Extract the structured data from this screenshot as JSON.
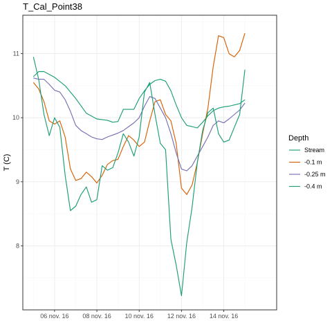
{
  "chart_data": {
    "type": "line",
    "title": "T_Cal_Point38",
    "xlabel": "",
    "ylabel": "T (C)",
    "x_axis": {
      "kind": "date",
      "range": [
        "2016-11-04T12:00",
        "2016-11-16T12:00"
      ],
      "ticks": [
        {
          "value": "2016-11-06T00:00",
          "label": "06 nov. 16"
        },
        {
          "value": "2016-11-08T00:00",
          "label": "08 nov. 16"
        },
        {
          "value": "2016-11-10T00:00",
          "label": "10 nov. 16"
        },
        {
          "value": "2016-11-12T00:00",
          "label": "12 nov. 16"
        },
        {
          "value": "2016-11-14T00:00",
          "label": "14 nov. 16"
        }
      ]
    },
    "y_axis": {
      "range": [
        7.0,
        11.6
      ],
      "ticks": [
        {
          "value": 8,
          "label": "8"
        },
        {
          "value": 9,
          "label": "9"
        },
        {
          "value": 10,
          "label": "10"
        },
        {
          "value": 11,
          "label": "11"
        }
      ]
    },
    "grid": true,
    "legend": {
      "title": "Depth",
      "position": "right"
    },
    "series": [
      {
        "name": "Stream",
        "color": "#1b9e77",
        "points": [
          [
            "2016-11-05T00:00",
            10.64
          ],
          [
            "2016-11-05T06:00",
            10.72
          ],
          [
            "2016-11-05T12:00",
            10.72
          ],
          [
            "2016-11-06T00:00",
            10.63
          ],
          [
            "2016-11-06T12:00",
            10.5
          ],
          [
            "2016-11-07T00:00",
            10.3
          ],
          [
            "2016-11-07T12:00",
            10.07
          ],
          [
            "2016-11-08T00:00",
            9.98
          ],
          [
            "2016-11-08T12:00",
            9.96
          ],
          [
            "2016-11-08T18:00",
            9.93
          ],
          [
            "2016-11-09T00:00",
            9.94
          ],
          [
            "2016-11-09T06:00",
            10.13
          ],
          [
            "2016-11-09T12:00",
            10.13
          ],
          [
            "2016-11-09T18:00",
            10.13
          ],
          [
            "2016-11-10T00:00",
            10.3
          ],
          [
            "2016-11-10T06:00",
            10.42
          ],
          [
            "2016-11-10T12:00",
            10.52
          ],
          [
            "2016-11-10T18:00",
            10.58
          ],
          [
            "2016-11-11T00:00",
            10.6
          ],
          [
            "2016-11-11T06:00",
            10.57
          ],
          [
            "2016-11-11T12:00",
            10.42
          ],
          [
            "2016-11-11T18:00",
            10.2
          ],
          [
            "2016-11-12T00:00",
            10.0
          ],
          [
            "2016-11-12T06:00",
            9.88
          ],
          [
            "2016-11-12T12:00",
            9.86
          ],
          [
            "2016-11-12T18:00",
            9.84
          ],
          [
            "2016-11-13T00:00",
            9.93
          ],
          [
            "2016-11-13T06:00",
            10.03
          ],
          [
            "2016-11-13T12:00",
            10.11
          ],
          [
            "2016-11-13T18:00",
            10.15
          ],
          [
            "2016-11-14T00:00",
            10.17
          ],
          [
            "2016-11-14T06:00",
            10.18
          ],
          [
            "2016-11-14T12:00",
            10.2
          ],
          [
            "2016-11-14T18:00",
            10.22
          ],
          [
            "2016-11-15T00:00",
            10.28
          ]
        ]
      },
      {
        "name": "-0.1 m",
        "color": "#d95f02",
        "points": [
          [
            "2016-11-05T00:00",
            10.55
          ],
          [
            "2016-11-05T06:00",
            10.45
          ],
          [
            "2016-11-05T12:00",
            10.25
          ],
          [
            "2016-11-05T18:00",
            9.95
          ],
          [
            "2016-11-06T00:00",
            9.9
          ],
          [
            "2016-11-06T06:00",
            9.95
          ],
          [
            "2016-11-06T12:00",
            9.7
          ],
          [
            "2016-11-06T18:00",
            9.2
          ],
          [
            "2016-11-07T00:00",
            9.02
          ],
          [
            "2016-11-07T06:00",
            9.05
          ],
          [
            "2016-11-07T12:00",
            9.15
          ],
          [
            "2016-11-07T18:00",
            9.08
          ],
          [
            "2016-11-08T00:00",
            8.98
          ],
          [
            "2016-11-08T06:00",
            9.1
          ],
          [
            "2016-11-08T12:00",
            9.27
          ],
          [
            "2016-11-08T18:00",
            9.33
          ],
          [
            "2016-11-09T00:00",
            9.35
          ],
          [
            "2016-11-09T06:00",
            9.55
          ],
          [
            "2016-11-09T12:00",
            9.72
          ],
          [
            "2016-11-09T18:00",
            9.65
          ],
          [
            "2016-11-10T00:00",
            9.55
          ],
          [
            "2016-11-10T06:00",
            9.62
          ],
          [
            "2016-11-10T12:00",
            9.95
          ],
          [
            "2016-11-10T18:00",
            10.25
          ],
          [
            "2016-11-11T00:00",
            10.28
          ],
          [
            "2016-11-11T06:00",
            10.05
          ],
          [
            "2016-11-11T12:00",
            9.95
          ],
          [
            "2016-11-11T18:00",
            9.6
          ],
          [
            "2016-11-12T00:00",
            8.9
          ],
          [
            "2016-11-12T06:00",
            8.8
          ],
          [
            "2016-11-12T12:00",
            8.95
          ],
          [
            "2016-11-12T18:00",
            9.3
          ],
          [
            "2016-11-13T00:00",
            9.75
          ],
          [
            "2016-11-13T06:00",
            10.15
          ],
          [
            "2016-11-13T12:00",
            10.8
          ],
          [
            "2016-11-13T18:00",
            11.28
          ],
          [
            "2016-11-14T00:00",
            11.25
          ],
          [
            "2016-11-14T06:00",
            11.0
          ],
          [
            "2016-11-14T12:00",
            10.95
          ],
          [
            "2016-11-14T18:00",
            11.05
          ],
          [
            "2016-11-15T00:00",
            11.32
          ]
        ]
      },
      {
        "name": "-0.25 m",
        "color": "#7570b3",
        "points": [
          [
            "2016-11-05T00:00",
            10.62
          ],
          [
            "2016-11-05T06:00",
            10.6
          ],
          [
            "2016-11-05T12:00",
            10.6
          ],
          [
            "2016-11-05T18:00",
            10.52
          ],
          [
            "2016-11-06T00:00",
            10.43
          ],
          [
            "2016-11-06T06:00",
            10.4
          ],
          [
            "2016-11-06T12:00",
            10.28
          ],
          [
            "2016-11-06T18:00",
            10.1
          ],
          [
            "2016-11-07T00:00",
            9.88
          ],
          [
            "2016-11-07T06:00",
            9.8
          ],
          [
            "2016-11-07T12:00",
            9.75
          ],
          [
            "2016-11-07T18:00",
            9.7
          ],
          [
            "2016-11-08T00:00",
            9.67
          ],
          [
            "2016-11-08T06:00",
            9.66
          ],
          [
            "2016-11-08T12:00",
            9.7
          ],
          [
            "2016-11-08T18:00",
            9.73
          ],
          [
            "2016-11-09T00:00",
            9.76
          ],
          [
            "2016-11-09T06:00",
            9.8
          ],
          [
            "2016-11-09T12:00",
            9.86
          ],
          [
            "2016-11-09T18:00",
            9.92
          ],
          [
            "2016-11-10T00:00",
            10.0
          ],
          [
            "2016-11-10T06:00",
            10.18
          ],
          [
            "2016-11-10T12:00",
            10.33
          ],
          [
            "2016-11-10T18:00",
            10.3
          ],
          [
            "2016-11-11T00:00",
            10.15
          ],
          [
            "2016-11-11T06:00",
            10.0
          ],
          [
            "2016-11-11T12:00",
            9.75
          ],
          [
            "2016-11-11T18:00",
            9.45
          ],
          [
            "2016-11-12T00:00",
            9.2
          ],
          [
            "2016-11-12T06:00",
            9.17
          ],
          [
            "2016-11-12T12:00",
            9.25
          ],
          [
            "2016-11-12T18:00",
            9.4
          ],
          [
            "2016-11-13T00:00",
            9.55
          ],
          [
            "2016-11-13T06:00",
            9.7
          ],
          [
            "2016-11-13T12:00",
            9.88
          ],
          [
            "2016-11-13T18:00",
            9.95
          ],
          [
            "2016-11-14T00:00",
            9.92
          ],
          [
            "2016-11-14T06:00",
            9.98
          ],
          [
            "2016-11-14T12:00",
            10.05
          ],
          [
            "2016-11-14T18:00",
            10.12
          ],
          [
            "2016-11-15T00:00",
            10.23
          ]
        ]
      },
      {
        "name": "-0.4 m",
        "color": "#1b9e77",
        "points": [
          [
            "2016-11-05T00:00",
            10.95
          ],
          [
            "2016-11-05T06:00",
            10.6
          ],
          [
            "2016-11-05T12:00",
            10.05
          ],
          [
            "2016-11-05T18:00",
            9.72
          ],
          [
            "2016-11-06T00:00",
            10.0
          ],
          [
            "2016-11-06T06:00",
            9.85
          ],
          [
            "2016-11-06T12:00",
            9.1
          ],
          [
            "2016-11-06T18:00",
            8.55
          ],
          [
            "2016-11-07T00:00",
            8.62
          ],
          [
            "2016-11-07T06:00",
            8.8
          ],
          [
            "2016-11-07T12:00",
            8.92
          ],
          [
            "2016-11-07T18:00",
            8.68
          ],
          [
            "2016-11-08T00:00",
            8.72
          ],
          [
            "2016-11-08T06:00",
            9.25
          ],
          [
            "2016-11-08T12:00",
            9.18
          ],
          [
            "2016-11-08T18:00",
            9.22
          ],
          [
            "2016-11-09T00:00",
            9.45
          ],
          [
            "2016-11-09T06:00",
            9.75
          ],
          [
            "2016-11-09T12:00",
            9.62
          ],
          [
            "2016-11-09T18:00",
            9.4
          ],
          [
            "2016-11-10T00:00",
            9.7
          ],
          [
            "2016-11-10T06:00",
            10.4
          ],
          [
            "2016-11-10T12:00",
            10.55
          ],
          [
            "2016-11-10T18:00",
            10.05
          ],
          [
            "2016-11-11T00:00",
            9.6
          ],
          [
            "2016-11-11T06:00",
            9.5
          ],
          [
            "2016-11-11T12:00",
            8.1
          ],
          [
            "2016-11-11T18:00",
            7.7
          ],
          [
            "2016-11-12T00:00",
            7.22
          ],
          [
            "2016-11-12T06:00",
            8.05
          ],
          [
            "2016-11-12T12:00",
            8.6
          ],
          [
            "2016-11-12T18:00",
            9.3
          ],
          [
            "2016-11-13T00:00",
            9.8
          ],
          [
            "2016-11-13T06:00",
            10.08
          ],
          [
            "2016-11-13T12:00",
            10.15
          ],
          [
            "2016-11-13T18:00",
            9.75
          ],
          [
            "2016-11-14T00:00",
            9.62
          ],
          [
            "2016-11-14T06:00",
            9.65
          ],
          [
            "2016-11-14T12:00",
            9.85
          ],
          [
            "2016-11-14T18:00",
            10.05
          ],
          [
            "2016-11-15T00:00",
            10.75
          ]
        ]
      }
    ]
  }
}
